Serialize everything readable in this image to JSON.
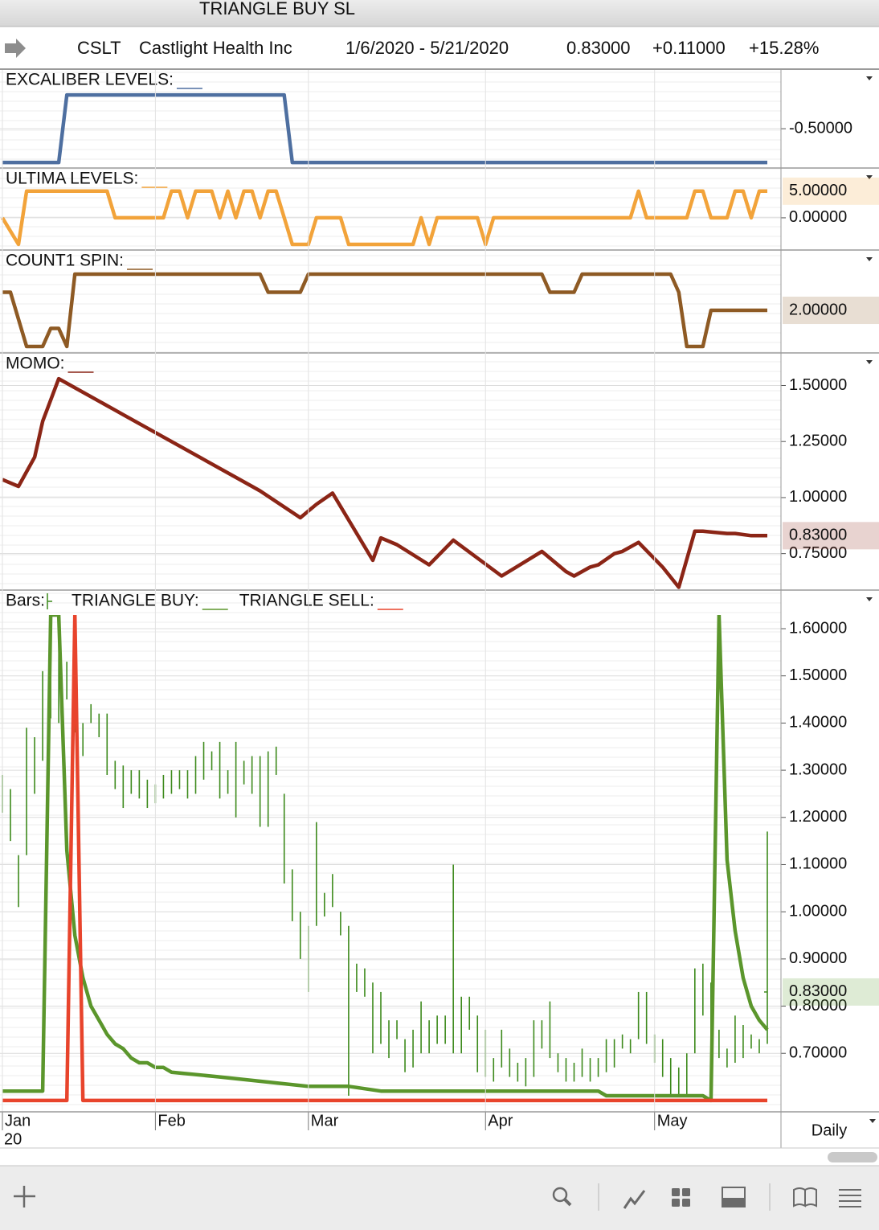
{
  "window_title": "TRIANGLE BUY SL",
  "header": {
    "symbol": "CSLT",
    "company": "Castlight Health Inc",
    "date_range": "1/6/2020 - 5/21/2020",
    "last": "0.83000",
    "change": "+0.11000",
    "change_pct": "+15.28%"
  },
  "chart_data": [
    {
      "type": "line",
      "xlim": [
        0,
        95
      ],
      "ylim": [
        -1.07,
        0.37
      ],
      "yticks": [
        {
          "value": -0.5,
          "label": "-0.50000"
        }
      ],
      "series": [
        {
          "name": "EXCALIBER LEVELS:",
          "color": "#4e6fa0",
          "x": [
            0,
            7,
            8,
            35,
            36,
            95
          ],
          "values": [
            -1,
            -1,
            0,
            0,
            -1,
            -1
          ]
        }
      ]
    },
    {
      "type": "line",
      "xlim": [
        0,
        95
      ],
      "ylim": [
        -5.9,
        9.2
      ],
      "yticks": [
        {
          "value": 0,
          "label": "0.00000"
        }
      ],
      "series": [
        {
          "name": "ULTIMA LEVELS:",
          "color": "#f2a33a",
          "last_label": "5.00000",
          "x": [
            0,
            2,
            3,
            13,
            14,
            20,
            21,
            22,
            23,
            24,
            26,
            27,
            28,
            29,
            30,
            31,
            32,
            33,
            34,
            36,
            38,
            39,
            42,
            43,
            51,
            52,
            53,
            54,
            59,
            60,
            61,
            78,
            79,
            80,
            85,
            86,
            87,
            88,
            90,
            91,
            92,
            93,
            94,
            95
          ],
          "values": [
            0,
            -5,
            5,
            5,
            0,
            0,
            5,
            5,
            0,
            5,
            5,
            0,
            5,
            0,
            5,
            5,
            0,
            5,
            5,
            -5,
            -5,
            0,
            0,
            -5,
            -5,
            0,
            -5,
            0,
            0,
            -5,
            0,
            0,
            5,
            0,
            0,
            5,
            5,
            0,
            0,
            5,
            5,
            0,
            5,
            5
          ]
        }
      ]
    },
    {
      "type": "line",
      "xlim": [
        0,
        95
      ],
      "ylim": [
        -0.31,
        5.29
      ],
      "yticks": [],
      "series": [
        {
          "name": "COUNT1 SPIN:",
          "color": "#8e5a24",
          "last_label": "2.00000",
          "x": [
            0,
            1,
            3,
            5,
            6,
            7,
            8,
            9,
            32,
            33,
            37,
            38,
            67,
            68,
            71,
            72,
            83,
            84,
            85,
            87,
            88,
            95
          ],
          "values": [
            3,
            3,
            0,
            0,
            1,
            1,
            0,
            4,
            4,
            3,
            3,
            4,
            4,
            3,
            3,
            4,
            4,
            3,
            0,
            0,
            2,
            2
          ]
        }
      ]
    },
    {
      "type": "line",
      "xlim": [
        0,
        95
      ],
      "ylim": [
        0.591,
        1.552
      ],
      "yticks": [
        {
          "value": 0.75,
          "label": "0.75000"
        },
        {
          "value": 1,
          "label": "1.00000"
        },
        {
          "value": 1.25,
          "label": "1.25000"
        },
        {
          "value": 1.5,
          "label": "1.50000"
        }
      ],
      "series": [
        {
          "name": "MOMO:",
          "color": "#8b2516",
          "last_label": "0.83000",
          "x": [
            0,
            2,
            4,
            5,
            7,
            14,
            15,
            31,
            32,
            37,
            39,
            41,
            46,
            47,
            49,
            53,
            56,
            62,
            67,
            70,
            71,
            73,
            74,
            76,
            77,
            79,
            82,
            84,
            86,
            87,
            90,
            91,
            93,
            95
          ],
          "values": [
            1.08,
            1.05,
            1.18,
            1.34,
            1.53,
            1.39,
            1.37,
            1.05,
            1.03,
            0.91,
            0.97,
            1.02,
            0.72,
            0.82,
            0.79,
            0.7,
            0.81,
            0.65,
            0.76,
            0.67,
            0.65,
            0.69,
            0.7,
            0.75,
            0.76,
            0.8,
            0.69,
            0.6,
            0.85,
            0.85,
            0.84,
            0.84,
            0.83,
            0.83
          ]
        }
      ]
    },
    {
      "type": "ohlc",
      "ohlc_name": "Bars:",
      "ohlc_color": "#3d8a1c",
      "last_label": "0.83000",
      "last_color": "#5b9a2e",
      "xlim": [
        0,
        95
      ],
      "ylim": [
        0.576,
        1.629
      ],
      "period": "Daily",
      "x_year": "20",
      "xticks": [
        {
          "value": 0,
          "label": "Jan"
        },
        {
          "value": 19,
          "label": "Feb"
        },
        {
          "value": 38,
          "label": "Mar"
        },
        {
          "value": 60,
          "label": "Apr"
        },
        {
          "value": 81,
          "label": "May"
        }
      ],
      "yticks": [
        {
          "value": 0.7,
          "label": "0.70000"
        },
        {
          "value": 0.8,
          "label": "0.80000"
        },
        {
          "value": 0.9,
          "label": "0.90000"
        },
        {
          "value": 1,
          "label": "1.00000"
        },
        {
          "value": 1.1,
          "label": "1.10000"
        },
        {
          "value": 1.2,
          "label": "1.20000"
        },
        {
          "value": 1.3,
          "label": "1.30000"
        },
        {
          "value": 1.4,
          "label": "1.40000"
        },
        {
          "value": 1.5,
          "label": "1.50000"
        },
        {
          "value": 1.6,
          "label": "1.60000"
        }
      ],
      "x": [
        0,
        1,
        2,
        3,
        4,
        5,
        6,
        7,
        8,
        9,
        10,
        11,
        12,
        13,
        14,
        15,
        16,
        17,
        18,
        19,
        20,
        21,
        22,
        23,
        24,
        25,
        26,
        27,
        28,
        29,
        30,
        31,
        32,
        33,
        34,
        35,
        36,
        37,
        38,
        39,
        40,
        41,
        42,
        43,
        44,
        45,
        46,
        47,
        48,
        49,
        50,
        51,
        52,
        53,
        54,
        55,
        56,
        57,
        58,
        59,
        60,
        61,
        62,
        63,
        64,
        65,
        66,
        67,
        68,
        69,
        70,
        71,
        72,
        73,
        74,
        75,
        76,
        77,
        78,
        79,
        80,
        81,
        82,
        83,
        84,
        85,
        86,
        87,
        88,
        89,
        90,
        91,
        92,
        93,
        94,
        95
      ],
      "high": [
        1.29,
        1.26,
        1.12,
        1.39,
        1.37,
        1.51,
        1.59,
        1.59,
        1.53,
        1.45,
        1.4,
        1.44,
        1.42,
        1.42,
        1.32,
        1.31,
        1.3,
        1.3,
        1.28,
        1.27,
        1.29,
        1.3,
        1.3,
        1.3,
        1.33,
        1.36,
        1.34,
        1.36,
        1.3,
        1.36,
        1.32,
        1.33,
        1.33,
        1.34,
        1.35,
        1.25,
        1.09,
        1.0,
        0.97,
        1.19,
        1.04,
        1.08,
        1.0,
        0.97,
        0.89,
        0.88,
        0.85,
        0.83,
        0.77,
        0.77,
        0.73,
        0.75,
        0.81,
        0.77,
        0.78,
        0.78,
        1.1,
        0.82,
        0.82,
        0.78,
        0.75,
        0.69,
        0.75,
        0.71,
        0.68,
        0.69,
        0.77,
        0.77,
        0.81,
        0.7,
        0.69,
        0.68,
        0.71,
        0.69,
        0.69,
        0.73,
        0.73,
        0.74,
        0.73,
        0.83,
        0.83,
        0.74,
        0.73,
        0.69,
        0.67,
        0.7,
        0.88,
        0.89,
        0.85,
        0.75,
        0.71,
        0.78,
        0.76,
        0.74,
        0.73,
        1.17
      ],
      "low": [
        1.21,
        1.15,
        1.01,
        1.12,
        1.25,
        1.32,
        1.41,
        1.4,
        1.45,
        1.38,
        1.33,
        1.4,
        1.37,
        1.29,
        1.26,
        1.22,
        1.25,
        1.24,
        1.22,
        1.23,
        1.24,
        1.25,
        1.26,
        1.24,
        1.25,
        1.28,
        1.3,
        1.24,
        1.25,
        1.2,
        1.27,
        1.25,
        1.18,
        1.18,
        1.29,
        1.06,
        0.98,
        0.9,
        0.83,
        0.97,
        0.99,
        1.01,
        0.95,
        0.61,
        0.83,
        0.82,
        0.7,
        0.72,
        0.69,
        0.73,
        0.66,
        0.67,
        0.7,
        0.7,
        0.72,
        0.72,
        0.7,
        0.7,
        0.75,
        0.66,
        0.65,
        0.64,
        0.67,
        0.65,
        0.64,
        0.63,
        0.65,
        0.71,
        0.69,
        0.66,
        0.64,
        0.64,
        0.65,
        0.64,
        0.65,
        0.66,
        0.67,
        0.71,
        0.7,
        0.73,
        0.72,
        0.68,
        0.65,
        0.61,
        0.61,
        0.61,
        0.7,
        0.78,
        0.7,
        0.69,
        0.67,
        0.68,
        0.69,
        0.71,
        0.7,
        0.72
      ],
      "series": [
        {
          "name": "TRIANGLE BUY:",
          "color": "#5b962c",
          "x": [
            0,
            5,
            6,
            7,
            8,
            9,
            10,
            11,
            12,
            13,
            14,
            15,
            16,
            17,
            18,
            19,
            20,
            21,
            27,
            38,
            43,
            47,
            53,
            60,
            61,
            74,
            75,
            87,
            88,
            89,
            90,
            91,
            92,
            93,
            94,
            95
          ],
          "values": [
            0.62,
            0.62,
            1.629,
            1.629,
            1.13,
            0.95,
            0.86,
            0.8,
            0.77,
            0.74,
            0.72,
            0.71,
            0.69,
            0.68,
            0.68,
            0.67,
            0.67,
            0.66,
            0.65,
            0.63,
            0.63,
            0.62,
            0.62,
            0.62,
            0.62,
            0.62,
            0.61,
            0.61,
            0.6,
            1.629,
            1.11,
            0.96,
            0.86,
            0.8,
            0.77,
            0.75
          ]
        },
        {
          "name": "TRIANGLE SELL:",
          "color": "#e8442c",
          "x": [
            0,
            8,
            9,
            10,
            95
          ],
          "values": [
            0.6,
            0.6,
            1.629,
            0.6,
            0.6
          ]
        }
      ]
    }
  ]
}
